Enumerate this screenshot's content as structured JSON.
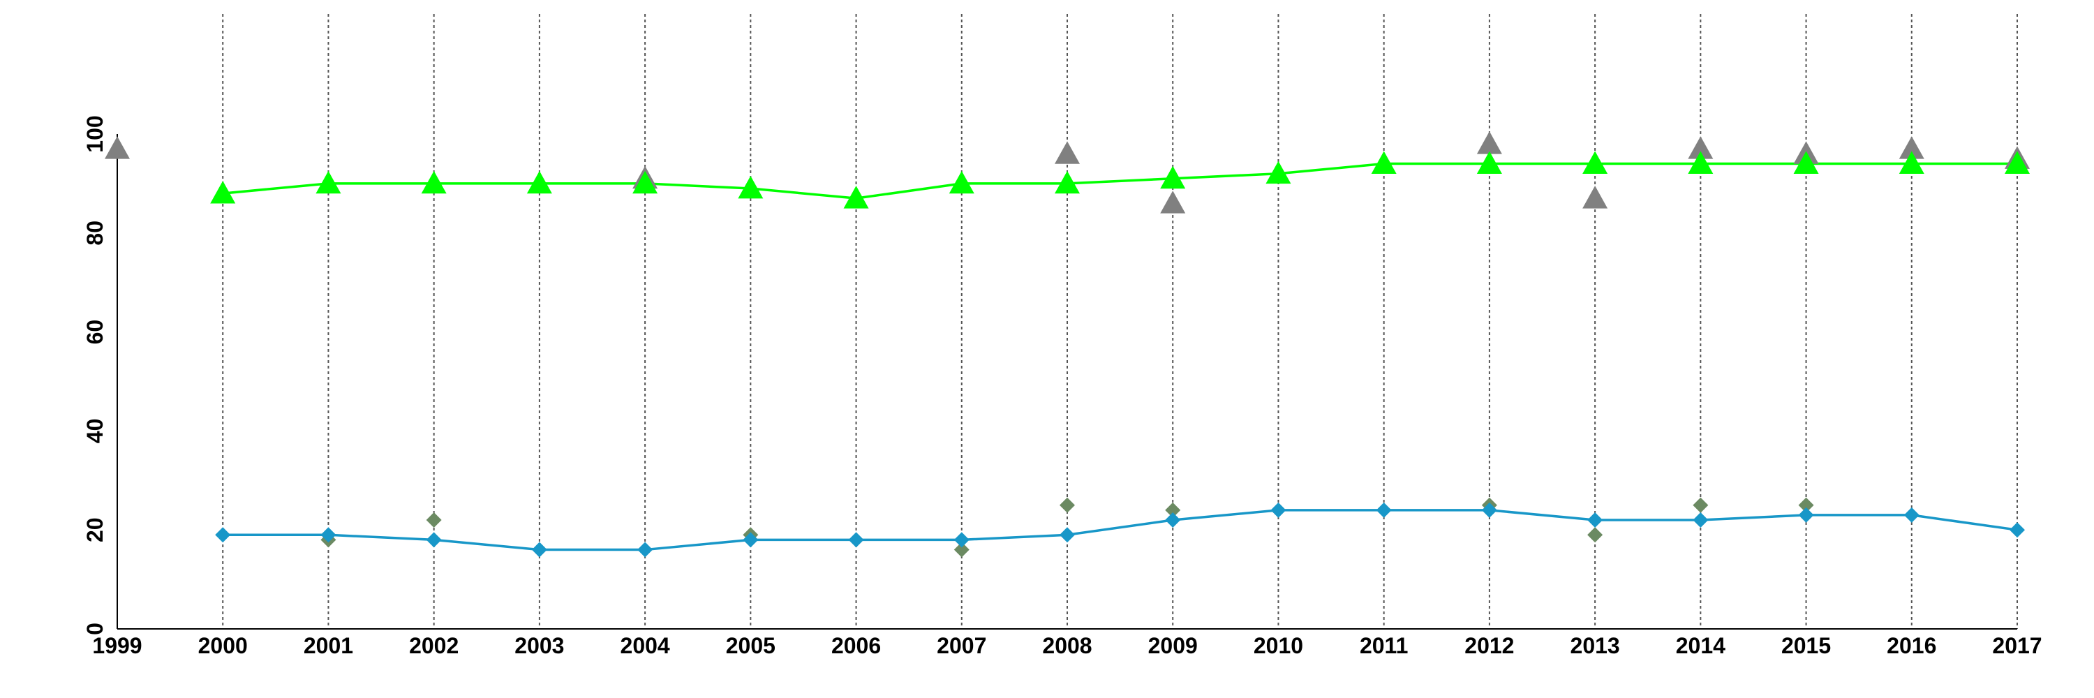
{
  "chart_data": {
    "type": "line",
    "x": [
      1999,
      2000,
      2001,
      2002,
      2003,
      2004,
      2005,
      2006,
      2007,
      2008,
      2009,
      2010,
      2011,
      2012,
      2013,
      2014,
      2015,
      2016,
      2017
    ],
    "x_tick_labels": [
      "1999",
      "2000",
      "2001",
      "2002",
      "2003",
      "2004",
      "2005",
      "2006",
      "2007",
      "2008",
      "2009",
      "2010",
      "2011",
      "2012",
      "2013",
      "2014",
      "2015",
      "2016",
      "2017"
    ],
    "y_tick_labels": [
      "0",
      "20",
      "40",
      "60",
      "80",
      "100"
    ],
    "ylim": [
      0,
      100
    ],
    "xlim": [
      1999,
      2017
    ],
    "grid": "vertical dashed lines at each year",
    "legend": "none",
    "colors": {
      "green_line": "#00ff00",
      "blue_line": "#1897c8",
      "gray_triangles": "#808080",
      "olive_diamonds": "#6b8a62"
    },
    "series": [
      {
        "color_key": "green_line",
        "marker": "triangle",
        "line": true,
        "x": [
          2000,
          2001,
          2002,
          2003,
          2004,
          2005,
          2006,
          2007,
          2008,
          2009,
          2010,
          2011,
          2012,
          2013,
          2014,
          2015,
          2016,
          2017
        ],
        "values": [
          88,
          90,
          90,
          90,
          90,
          89,
          87,
          90,
          90,
          91,
          92,
          94,
          94,
          94,
          94,
          94,
          94,
          94
        ]
      },
      {
        "color_key": "blue_line",
        "marker": "diamond",
        "line": true,
        "x": [
          2000,
          2001,
          2002,
          2003,
          2004,
          2005,
          2006,
          2007,
          2008,
          2009,
          2010,
          2011,
          2012,
          2013,
          2014,
          2015,
          2016,
          2017
        ],
        "values": [
          19,
          19,
          18,
          16,
          16,
          18,
          18,
          18,
          19,
          22,
          24,
          24,
          24,
          22,
          22,
          23,
          23,
          20
        ]
      },
      {
        "color_key": "gray_triangles",
        "marker": "triangle",
        "line": false,
        "x": [
          1999,
          2004,
          2008,
          2009,
          2012,
          2013,
          2014,
          2015,
          2016,
          2017
        ],
        "values": [
          97,
          91,
          96,
          86,
          98,
          87,
          97,
          96,
          97,
          95
        ]
      },
      {
        "color_key": "olive_diamonds",
        "marker": "diamond",
        "line": false,
        "x": [
          2001,
          2002,
          2005,
          2007,
          2008,
          2009,
          2012,
          2013,
          2014,
          2015
        ],
        "values": [
          18,
          22,
          19,
          16,
          25,
          24,
          25,
          19,
          25,
          25
        ]
      }
    ]
  }
}
